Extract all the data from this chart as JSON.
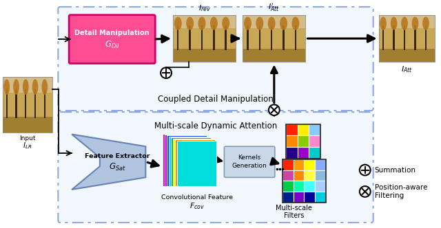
{
  "bg_color": "#ffffff",
  "top_box_border": "#3366cc",
  "bottom_box_border": "#3366cc",
  "detail_manip_color": "#ff4d94",
  "detail_manip_border": "#cc0066",
  "feature_ext_color": "#aabfdd",
  "kernels_gen_color": "#c8d8e8",
  "kernels_gen_border": "#8899aa",
  "top_section_label": "Coupled Detail Manipulation",
  "bottom_section_label": "Multi-scale Dynamic Attention",
  "input_label": "Input",
  "i_lr_label": "$I_{LR}$",
  "detail_manip_line1": "Detail Manipulation",
  "detail_manip_line2": "$G_{Dil}$",
  "feature_ext_line1": "Feature Extractor",
  "feature_ext_line2": "$G_{Sat}$",
  "kernels_gen_line1": "Kernels",
  "kernels_gen_line2": "Generation",
  "i_rev_label": "$I_{rev}$",
  "i_att_prime_label": "$I^{\\prime}_{Att}$",
  "i_att_label": "$I_{Att}$",
  "conv_feat_label": "Convolutional Feature",
  "f_cov_label": "$F_{cov}$",
  "multiscale_label": "Multi-scale\nFilters",
  "summation_label": "Summation",
  "position_label": "Position-aware\nFiltering",
  "grid1_colors": [
    "#ff2200",
    "#ffee00",
    "#88ccff",
    "#ff8800",
    "#88cc00",
    "#ff88cc",
    "#220088",
    "#9900cc",
    "#00cccc"
  ],
  "grid2_colors": [
    "#ff2200",
    "#ff9900",
    "#ffff00",
    "#88aaff",
    "#cc44aa",
    "#ff8800",
    "#ffff44",
    "#88bbdd",
    "#00cc44",
    "#00ffaa",
    "#44ffff",
    "#aaccff",
    "#002288",
    "#7700cc",
    "#000099",
    "#00ccdd"
  ],
  "stack_colors": [
    "#ff0000",
    "#ff8800",
    "#ffff00",
    "#00cc00",
    "#00ccff",
    "#0044ff",
    "#aa00ff",
    "#ff00aa"
  ]
}
